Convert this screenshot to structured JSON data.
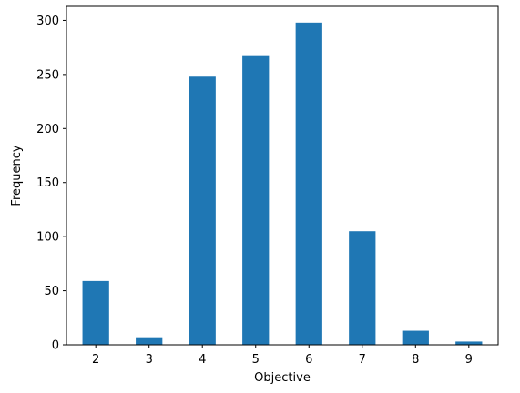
{
  "chart_data": {
    "type": "bar",
    "title": "",
    "xlabel": "Objective",
    "ylabel": "Frequency",
    "categories": [
      "2",
      "3",
      "4",
      "5",
      "6",
      "7",
      "8",
      "9"
    ],
    "x": [
      2,
      3,
      4,
      5,
      6,
      7,
      8,
      9
    ],
    "values": [
      59,
      7,
      248,
      267,
      298,
      105,
      13,
      3
    ],
    "xlim": [
      1.45,
      9.55
    ],
    "ylim": [
      0,
      313
    ],
    "xticks": [
      2,
      3,
      4,
      5,
      6,
      7,
      8,
      9
    ],
    "yticks": [
      0,
      50,
      100,
      150,
      200,
      250,
      300
    ],
    "grid": false,
    "legend": "none",
    "bar_color": "#1f77b4"
  }
}
